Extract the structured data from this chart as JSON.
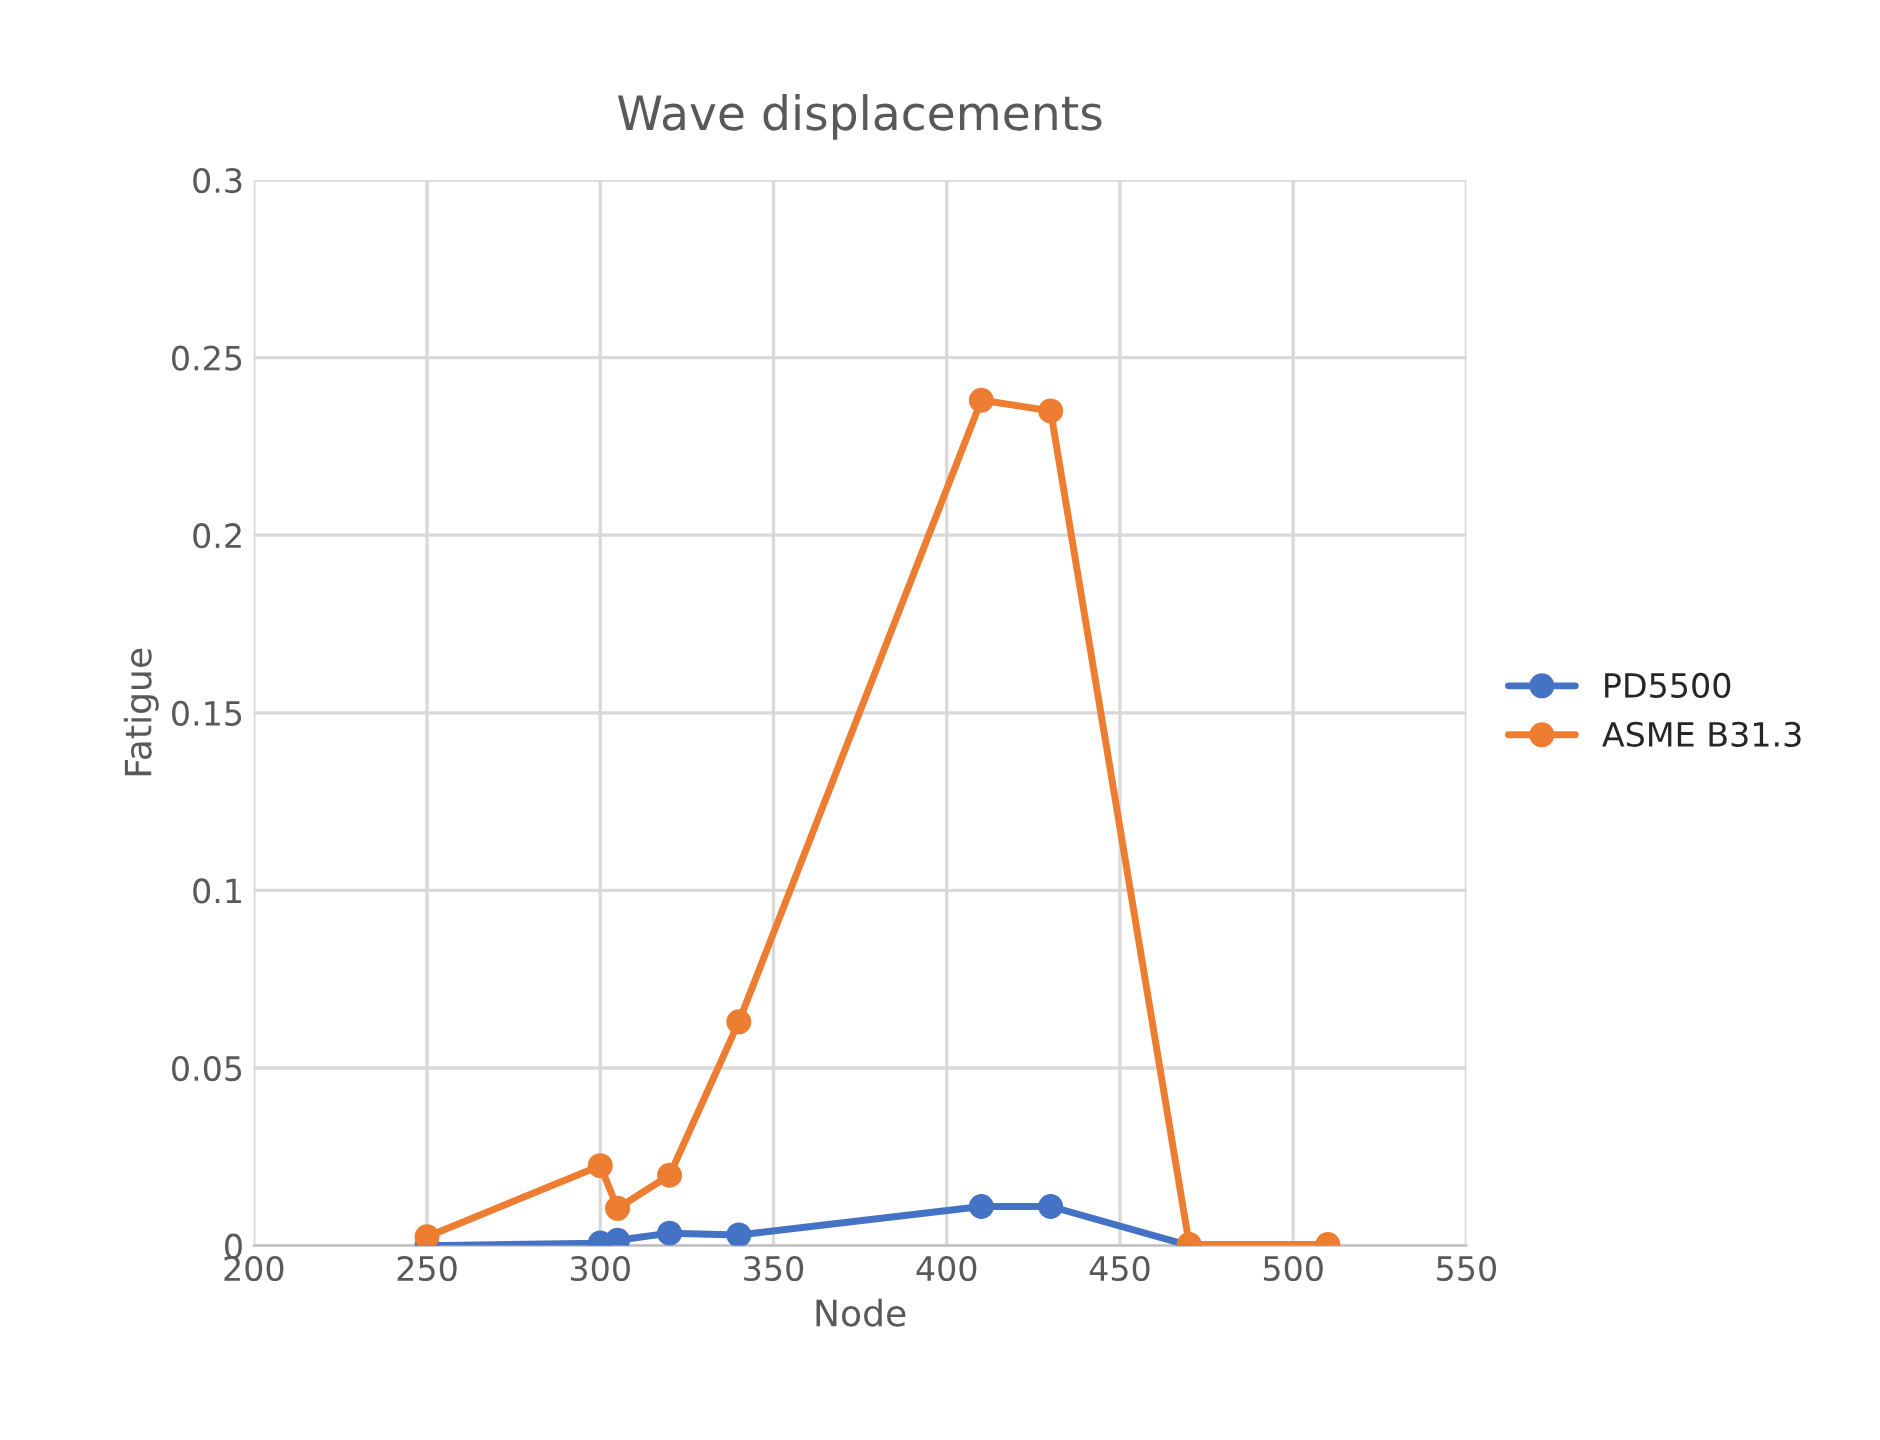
{
  "chart_data": {
    "type": "line",
    "title": "Wave displacements",
    "xlabel": "Node",
    "ylabel": "Fatigue",
    "x": [
      250,
      300,
      305,
      320,
      340,
      410,
      430,
      470,
      510
    ],
    "series": [
      {
        "name": "PD5500",
        "color": "#4472c4",
        "values": [
          0,
          0.0007,
          0.0015,
          0.0035,
          0.003,
          0.011,
          0.011,
          0,
          null
        ]
      },
      {
        "name": "ASME B31.3",
        "color": "#ed7d31",
        "values": [
          0.0025,
          0.0225,
          0.0105,
          0.0198,
          0.063,
          0.238,
          0.235,
          0.0003,
          0.0003
        ]
      }
    ],
    "xlim": [
      200,
      550
    ],
    "xticks": [
      200,
      250,
      300,
      350,
      400,
      450,
      500,
      550
    ],
    "ylim": [
      0,
      0.3
    ],
    "yticks": [
      0,
      0.05,
      0.1,
      0.15,
      0.2,
      0.25,
      0.3
    ],
    "grid": true,
    "legend": "right",
    "marker": "circle",
    "line_style": "solid"
  }
}
